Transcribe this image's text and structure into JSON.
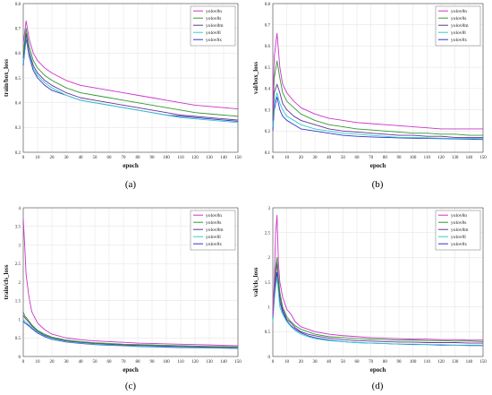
{
  "colors": {
    "yolov8n": "#cc33cc",
    "yolov8s": "#339933",
    "yolov8m": "#663399",
    "yolov8l": "#33cccc",
    "yolov8x": "#3333cc"
  },
  "chart_data": [
    {
      "type": "line",
      "panel_label": "(a)",
      "xlabel": "epoch",
      "ylabel": "train/box_loss",
      "xlim": [
        0,
        150
      ],
      "ylim": [
        0.2,
        0.8
      ],
      "xticks": [
        0,
        10,
        20,
        30,
        40,
        50,
        60,
        70,
        80,
        90,
        100,
        110,
        120,
        130,
        140,
        150
      ],
      "yticks": [
        0.2,
        0.3,
        0.4,
        0.5,
        0.6,
        0.7,
        0.8
      ],
      "grid": true,
      "legend": "top-right",
      "x": [
        0,
        2,
        4,
        7,
        10,
        15,
        20,
        30,
        40,
        50,
        60,
        70,
        80,
        90,
        100,
        110,
        120,
        130,
        140,
        150
      ],
      "series": [
        {
          "name": "yolov8n",
          "values": [
            0.64,
            0.73,
            0.66,
            0.6,
            0.57,
            0.54,
            0.52,
            0.49,
            0.47,
            0.46,
            0.45,
            0.44,
            0.43,
            0.42,
            0.41,
            0.4,
            0.39,
            0.385,
            0.38,
            0.375
          ]
        },
        {
          "name": "yolov8s",
          "values": [
            0.6,
            0.7,
            0.63,
            0.57,
            0.54,
            0.51,
            0.49,
            0.46,
            0.44,
            0.43,
            0.42,
            0.41,
            0.4,
            0.39,
            0.38,
            0.37,
            0.36,
            0.355,
            0.35,
            0.345
          ]
        },
        {
          "name": "yolov8m",
          "values": [
            0.58,
            0.68,
            0.61,
            0.55,
            0.52,
            0.49,
            0.47,
            0.44,
            0.42,
            0.41,
            0.4,
            0.39,
            0.38,
            0.37,
            0.36,
            0.35,
            0.345,
            0.34,
            0.335,
            0.33
          ]
        },
        {
          "name": "yolov8l",
          "values": [
            0.56,
            0.67,
            0.6,
            0.54,
            0.51,
            0.48,
            0.46,
            0.43,
            0.41,
            0.4,
            0.39,
            0.38,
            0.37,
            0.36,
            0.35,
            0.34,
            0.335,
            0.33,
            0.325,
            0.32
          ]
        },
        {
          "name": "yolov8x",
          "values": [
            0.55,
            0.66,
            0.59,
            0.53,
            0.5,
            0.47,
            0.45,
            0.43,
            0.41,
            0.4,
            0.39,
            0.38,
            0.37,
            0.36,
            0.35,
            0.345,
            0.34,
            0.335,
            0.33,
            0.325
          ]
        }
      ]
    },
    {
      "type": "line",
      "panel_label": "(b)",
      "xlabel": "epoch",
      "ylabel": "val/box_loss",
      "xlim": [
        0,
        150
      ],
      "ylim": [
        0.1,
        0.8
      ],
      "xticks": [
        0,
        10,
        20,
        30,
        40,
        50,
        60,
        70,
        80,
        90,
        100,
        110,
        120,
        130,
        140,
        150
      ],
      "yticks": [
        0.1,
        0.2,
        0.3,
        0.4,
        0.5,
        0.6,
        0.7,
        0.8
      ],
      "grid": true,
      "legend": "top-right",
      "x": [
        0,
        1,
        3,
        5,
        7,
        10,
        15,
        20,
        30,
        40,
        50,
        60,
        70,
        80,
        90,
        100,
        110,
        120,
        130,
        140,
        150
      ],
      "series": [
        {
          "name": "yolov8n",
          "values": [
            0.3,
            0.55,
            0.66,
            0.5,
            0.42,
            0.38,
            0.34,
            0.31,
            0.28,
            0.26,
            0.25,
            0.24,
            0.235,
            0.23,
            0.225,
            0.22,
            0.215,
            0.21,
            0.21,
            0.21,
            0.21
          ]
        },
        {
          "name": "yolov8s",
          "values": [
            0.28,
            0.45,
            0.53,
            0.45,
            0.38,
            0.34,
            0.31,
            0.28,
            0.25,
            0.23,
            0.22,
            0.21,
            0.205,
            0.2,
            0.195,
            0.19,
            0.19,
            0.185,
            0.185,
            0.18,
            0.18
          ]
        },
        {
          "name": "yolov8m",
          "values": [
            0.25,
            0.38,
            0.42,
            0.38,
            0.33,
            0.3,
            0.27,
            0.25,
            0.23,
            0.21,
            0.2,
            0.195,
            0.19,
            0.185,
            0.18,
            0.18,
            0.175,
            0.175,
            0.17,
            0.17,
            0.17
          ]
        },
        {
          "name": "yolov8l",
          "values": [
            0.22,
            0.33,
            0.38,
            0.33,
            0.3,
            0.27,
            0.25,
            0.23,
            0.21,
            0.2,
            0.19,
            0.185,
            0.18,
            0.175,
            0.17,
            0.17,
            0.168,
            0.166,
            0.165,
            0.165,
            0.165
          ]
        },
        {
          "name": "yolov8x",
          "values": [
            0.2,
            0.3,
            0.36,
            0.3,
            0.27,
            0.25,
            0.23,
            0.21,
            0.2,
            0.19,
            0.18,
            0.175,
            0.172,
            0.17,
            0.168,
            0.166,
            0.165,
            0.164,
            0.163,
            0.162,
            0.16
          ]
        }
      ]
    },
    {
      "type": "line",
      "panel_label": "(c)",
      "xlabel": "epoch",
      "ylabel": "train/cls_loss",
      "xlim": [
        0,
        150
      ],
      "ylim": [
        0,
        4
      ],
      "xticks": [
        0,
        10,
        20,
        30,
        40,
        50,
        60,
        70,
        80,
        90,
        100,
        110,
        120,
        130,
        140,
        150
      ],
      "yticks": [
        0,
        0.5,
        1,
        1.5,
        2,
        2.5,
        3,
        3.5,
        4
      ],
      "grid": true,
      "legend": "top-right",
      "x": [
        0,
        1,
        2,
        4,
        6,
        10,
        15,
        20,
        30,
        40,
        50,
        60,
        70,
        80,
        90,
        100,
        110,
        120,
        130,
        140,
        150
      ],
      "series": [
        {
          "name": "yolov8n",
          "values": [
            3.7,
            3.0,
            2.2,
            1.6,
            1.2,
            0.9,
            0.72,
            0.6,
            0.5,
            0.45,
            0.42,
            0.4,
            0.38,
            0.36,
            0.35,
            0.34,
            0.33,
            0.32,
            0.31,
            0.3,
            0.29
          ]
        },
        {
          "name": "yolov8s",
          "values": [
            1.2,
            1.1,
            1.05,
            0.95,
            0.85,
            0.7,
            0.6,
            0.52,
            0.44,
            0.4,
            0.37,
            0.35,
            0.33,
            0.32,
            0.31,
            0.3,
            0.29,
            0.28,
            0.27,
            0.265,
            0.26
          ]
        },
        {
          "name": "yolov8m",
          "values": [
            1.1,
            1.05,
            1.0,
            0.92,
            0.82,
            0.68,
            0.57,
            0.5,
            0.42,
            0.38,
            0.35,
            0.33,
            0.31,
            0.3,
            0.29,
            0.28,
            0.27,
            0.26,
            0.25,
            0.245,
            0.24
          ]
        },
        {
          "name": "yolov8l",
          "values": [
            1.0,
            0.95,
            0.92,
            0.85,
            0.78,
            0.65,
            0.55,
            0.47,
            0.4,
            0.36,
            0.33,
            0.31,
            0.3,
            0.28,
            0.27,
            0.26,
            0.25,
            0.24,
            0.235,
            0.23,
            0.22
          ]
        },
        {
          "name": "yolov8x",
          "values": [
            0.95,
            0.9,
            0.88,
            0.82,
            0.75,
            0.63,
            0.53,
            0.46,
            0.39,
            0.35,
            0.32,
            0.3,
            0.29,
            0.27,
            0.26,
            0.25,
            0.24,
            0.235,
            0.23,
            0.225,
            0.215
          ]
        }
      ]
    },
    {
      "type": "line",
      "panel_label": "(d)",
      "xlabel": "epoch",
      "ylabel": "val/cls_loss",
      "xlim": [
        0,
        150
      ],
      "ylim": [
        0,
        3
      ],
      "xticks": [
        0,
        10,
        20,
        30,
        40,
        50,
        60,
        70,
        80,
        90,
        100,
        110,
        120,
        130,
        140,
        150
      ],
      "yticks": [
        0,
        0.5,
        1,
        1.5,
        2,
        2.5,
        3
      ],
      "grid": true,
      "legend": "top-right",
      "x": [
        0,
        1,
        2,
        3,
        4,
        5,
        7,
        10,
        13,
        16,
        20,
        25,
        30,
        40,
        50,
        60,
        70,
        80,
        90,
        100,
        110,
        120,
        130,
        140,
        150
      ],
      "series": [
        {
          "name": "yolov8n",
          "values": [
            0.8,
            1.5,
            2.5,
            2.85,
            1.9,
            1.5,
            1.2,
            0.95,
            0.85,
            0.7,
            0.6,
            0.55,
            0.5,
            0.45,
            0.42,
            0.4,
            0.38,
            0.37,
            0.36,
            0.35,
            0.35,
            0.34,
            0.34,
            0.33,
            0.33
          ]
        },
        {
          "name": "yolov8s",
          "values": [
            0.9,
            1.4,
            1.8,
            2.0,
            1.6,
            1.3,
            1.0,
            0.8,
            0.7,
            0.62,
            0.55,
            0.5,
            0.45,
            0.4,
            0.38,
            0.36,
            0.35,
            0.34,
            0.33,
            0.33,
            0.32,
            0.32,
            0.31,
            0.31,
            0.3
          ]
        },
        {
          "name": "yolov8m",
          "values": [
            0.85,
            1.3,
            1.6,
            1.9,
            1.5,
            1.2,
            0.95,
            0.75,
            0.68,
            0.58,
            0.5,
            0.45,
            0.42,
            0.37,
            0.34,
            0.32,
            0.31,
            0.3,
            0.29,
            0.29,
            0.28,
            0.28,
            0.28,
            0.27,
            0.27
          ]
        },
        {
          "name": "yolov8l",
          "values": [
            0.7,
            1.1,
            1.4,
            1.6,
            1.3,
            1.0,
            0.85,
            0.7,
            0.6,
            0.52,
            0.45,
            0.4,
            0.36,
            0.32,
            0.3,
            0.28,
            0.27,
            0.26,
            0.25,
            0.25,
            0.24,
            0.24,
            0.23,
            0.23,
            0.23
          ]
        },
        {
          "name": "yolov8x",
          "values": [
            0.75,
            1.2,
            1.5,
            1.7,
            1.4,
            1.1,
            0.9,
            0.72,
            0.62,
            0.55,
            0.48,
            0.42,
            0.38,
            0.33,
            0.3,
            0.28,
            0.27,
            0.26,
            0.25,
            0.24,
            0.24,
            0.23,
            0.23,
            0.22,
            0.22
          ]
        }
      ]
    }
  ]
}
